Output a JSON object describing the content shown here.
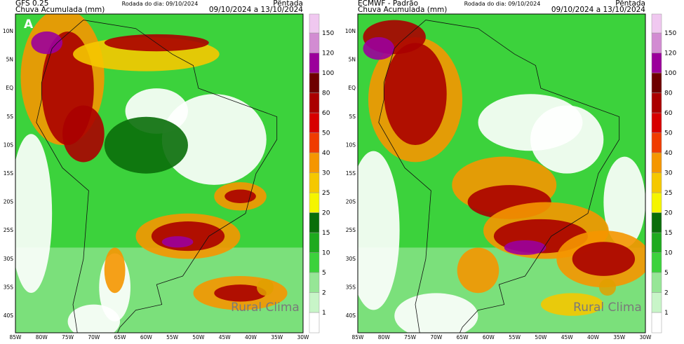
{
  "panels": [
    {
      "model": "GFS 0.25",
      "label": "A",
      "subtitle": "Chuva Acumulada (mm)",
      "run": "Rodada do dia: 09/10/2024",
      "period_type": "Pêntada",
      "period": "09/10/2024 a 13/10/2024",
      "logo": "Rural Clima"
    },
    {
      "model": "ECMWF - Padrão",
      "subtitle": "Chuva Acumulada (mm)",
      "run": "Rodada do dia: 09/10/2024",
      "period_type": "Pêntada",
      "period": "09/10/2024 a 13/10/2024",
      "logo": "Rural Clima"
    }
  ],
  "lat_labels": [
    "10N",
    "5N",
    "EQ",
    "5S",
    "10S",
    "15S",
    "20S",
    "25S",
    "30S",
    "35S",
    "40S"
  ],
  "lon_labels": [
    "85W",
    "80W",
    "75W",
    "70W",
    "65W",
    "60W",
    "55W",
    "50W",
    "45W",
    "40W",
    "35W",
    "30W"
  ],
  "colorbar": {
    "levels": [
      1,
      2,
      5,
      10,
      15,
      20,
      25,
      30,
      40,
      50,
      60,
      80,
      100,
      120,
      150
    ],
    "colors": [
      "#ffffff",
      "#c8f5c8",
      "#96e696",
      "#3cd23c",
      "#1eaa1e",
      "#0a6e0a",
      "#f5f500",
      "#f5c800",
      "#f59600",
      "#f03c00",
      "#d70000",
      "#aa0000",
      "#6e0000",
      "#9b009b",
      "#d28cd2",
      "#f0c8f0"
    ]
  }
}
